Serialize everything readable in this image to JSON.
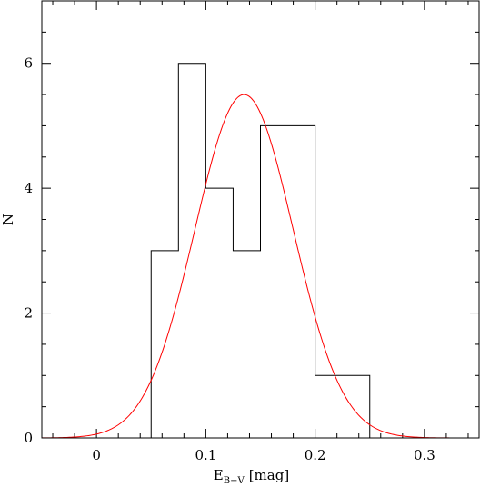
{
  "chart_data": {
    "type": "histogram",
    "title": "",
    "xlabel": "E",
    "xlabel_subscript": "B−V",
    "xlabel_unit": "[mag]",
    "ylabel": "N",
    "xlim": [
      -0.05,
      0.35
    ],
    "ylim": [
      0,
      7
    ],
    "x_ticks_major": [
      0,
      0.1,
      0.2,
      0.3
    ],
    "x_tick_labels": [
      "0",
      "0.1",
      "0.2",
      "0.3"
    ],
    "y_ticks_major": [
      0,
      2,
      4,
      6
    ],
    "y_tick_labels": [
      "0",
      "2",
      "4",
      "6"
    ],
    "x_tick_minor_step": 0.02,
    "y_tick_minor_step": 0.5,
    "grid": false,
    "legend": "none",
    "histogram": {
      "bin_edges": [
        0.05,
        0.075,
        0.1,
        0.125,
        0.15,
        0.175,
        0.2,
        0.225,
        0.25
      ],
      "counts": [
        3,
        6,
        4,
        3,
        5,
        5,
        1,
        1
      ],
      "color": "#000000"
    },
    "gaussian_fit": {
      "amplitude": 5.5,
      "mean": 0.135,
      "sigma": 0.045,
      "color": "#ff0000"
    }
  }
}
